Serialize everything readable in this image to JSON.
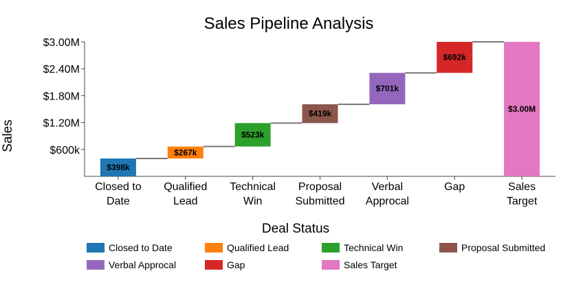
{
  "chart_data": {
    "type": "waterfall",
    "title": "Sales Pipeline Analysis",
    "xlabel": "Deal Status",
    "ylabel": "Sales",
    "ylim": [
      0,
      3000000
    ],
    "yticks": [
      600000,
      1200000,
      1800000,
      2400000,
      3000000
    ],
    "ytick_labels": [
      "$600k",
      "$1.20M",
      "$1.80M",
      "$2.40M",
      "$3.00M"
    ],
    "categories": [
      [
        "Closed to",
        "Date"
      ],
      [
        "Qualified",
        "Lead"
      ],
      [
        "Technical",
        "Win"
      ],
      [
        "Proposal",
        "Submitted"
      ],
      [
        "Verbal",
        "Approcal"
      ],
      [
        "Gap"
      ],
      [
        "Sales",
        "Target"
      ]
    ],
    "series": [
      {
        "name": "Closed to Date",
        "start": 0,
        "value": 398000,
        "label": "$398k",
        "color": "#1f77b4"
      },
      {
        "name": "Qualified Lead",
        "start": 398000,
        "value": 267000,
        "label": "$267k",
        "color": "#ff7f0e"
      },
      {
        "name": "Technical Win",
        "start": 665000,
        "value": 523000,
        "label": "$523k",
        "color": "#2ca02c"
      },
      {
        "name": "Proposal Submitted",
        "start": 1188000,
        "value": 419000,
        "label": "$419k",
        "color": "#8c564b"
      },
      {
        "name": "Verbal Approcal",
        "start": 1607000,
        "value": 701000,
        "label": "$701k",
        "color": "#9467bd"
      },
      {
        "name": "Gap",
        "start": 2308000,
        "value": 692000,
        "label": "$692k",
        "color": "#d62728"
      },
      {
        "name": "Sales Target",
        "start": 0,
        "value": 3000000,
        "label": "$3.00M",
        "color": "#e377c2"
      }
    ],
    "legend": {
      "placement": "bottom",
      "entries": [
        "Closed to Date",
        "Qualified Lead",
        "Technical Win",
        "Proposal Submitted",
        "Verbal Approcal",
        "Gap",
        "Sales Target"
      ]
    },
    "grid": false
  }
}
